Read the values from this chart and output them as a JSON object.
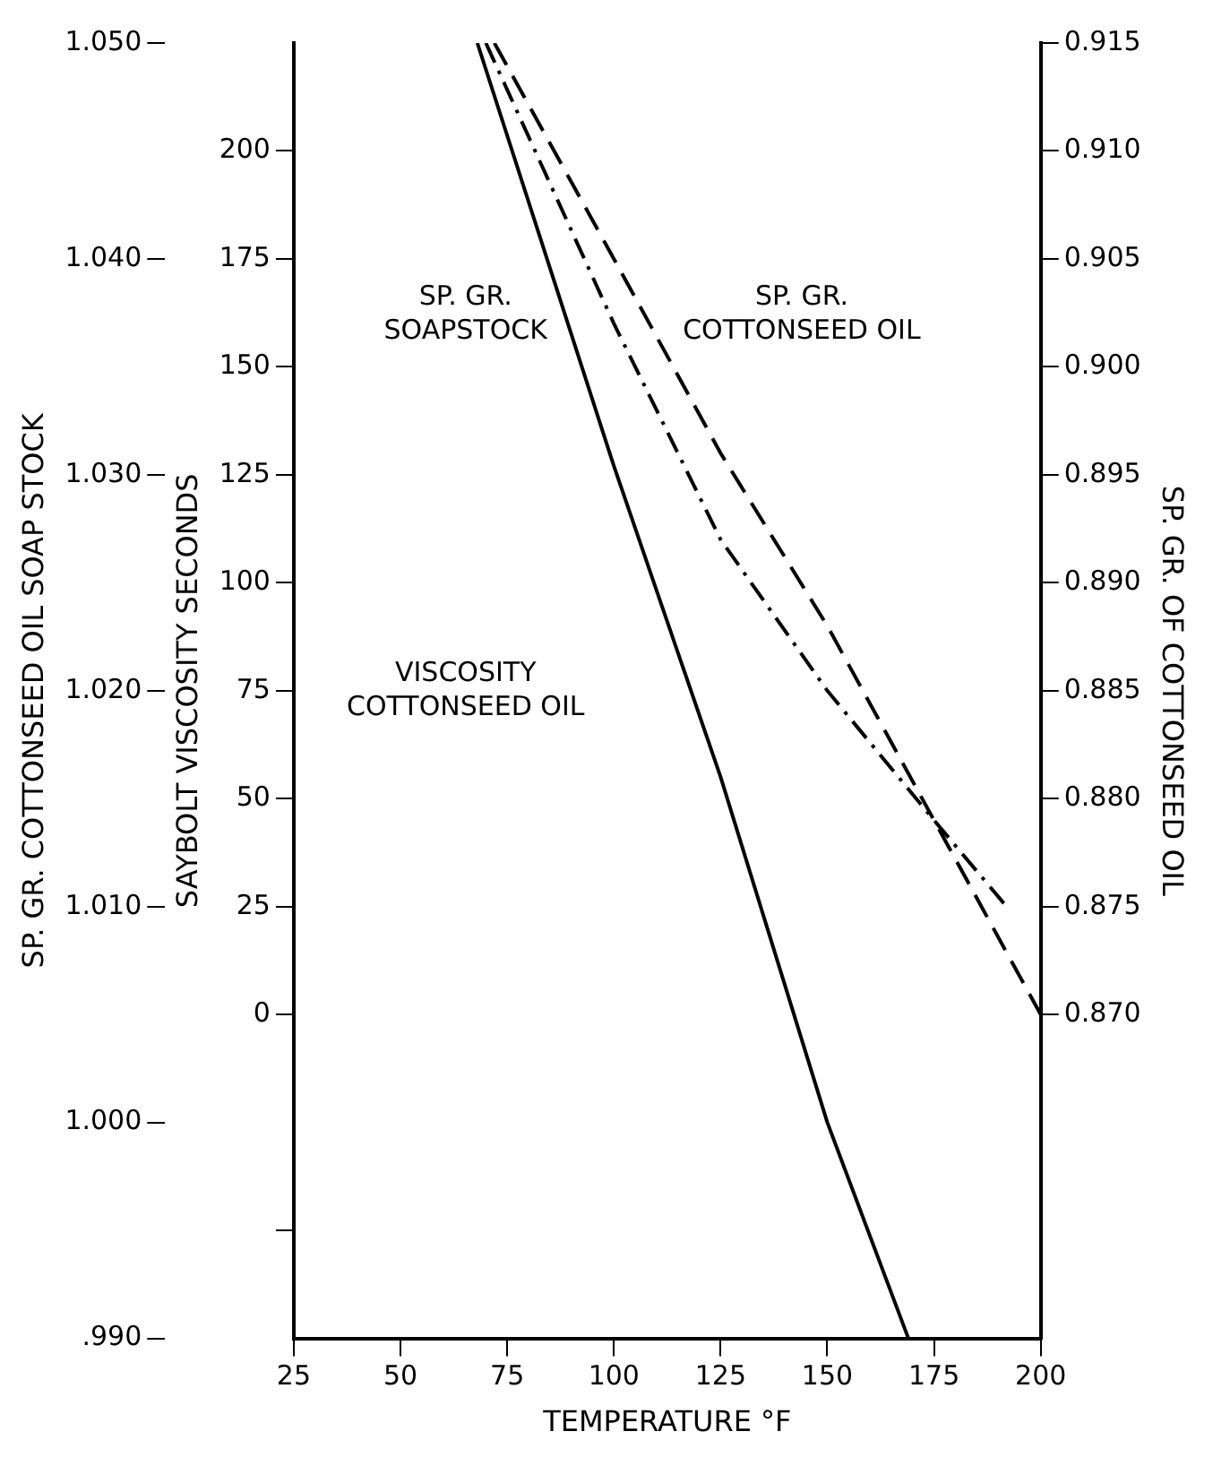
{
  "chart_data": {
    "type": "line",
    "xlabel": "TEMPERATURE °F",
    "ylabel": "SAYBOLT VISCOSITY SECONDS",
    "y2label": "SP. GR. COTTONSEED OIL SOAP STOCK",
    "y3label": "SP. GR. OF COTTONSEED OIL",
    "xlim": [
      25,
      200
    ],
    "xticks": [
      25,
      50,
      75,
      100,
      125,
      150,
      175,
      200
    ],
    "ylim": [
      -75,
      225
    ],
    "yticks": [
      {
        "value": -50,
        "label": null
      },
      0,
      25,
      50,
      75,
      100,
      125,
      150,
      175,
      200
    ],
    "y2lim": [
      0.99,
      1.05
    ],
    "y2ticks": [
      {
        "value": 0.99,
        "label": ".990"
      },
      {
        "value": 1.0,
        "label": "1.000"
      },
      {
        "value": 1.01,
        "label": "1.010"
      },
      {
        "value": 1.02,
        "label": "1.020"
      },
      {
        "value": 1.03,
        "label": "1.030"
      },
      {
        "value": 1.04,
        "label": "1.040"
      },
      {
        "value": 1.05,
        "label": "1.050"
      }
    ],
    "y3lim": [
      0.855,
      0.915
    ],
    "y3ticks": [
      {
        "value": 0.87,
        "label": "0.870"
      },
      {
        "value": 0.875,
        "label": "0.875"
      },
      {
        "value": 0.88,
        "label": "0.880"
      },
      {
        "value": 0.885,
        "label": "0.885"
      },
      {
        "value": 0.89,
        "label": "0.890"
      },
      {
        "value": 0.895,
        "label": "0.895"
      },
      {
        "value": 0.9,
        "label": "0.900"
      },
      {
        "value": 0.905,
        "label": "0.905"
      },
      {
        "value": 0.91,
        "label": "0.910"
      },
      {
        "value": 0.915,
        "label": "0.915"
      }
    ],
    "series": [
      {
        "type": "line",
        "color": "#000000",
        "line_style": "solid",
        "axis": "y",
        "x": [
          68,
          100,
          125,
          150,
          169
        ],
        "values": [
          225,
          127,
          55,
          -25,
          -75
        ]
      },
      {
        "type": "line",
        "color": "#000000",
        "line_style": "dashdot",
        "axis": "y2",
        "x": [
          70,
          100,
          125,
          150,
          175,
          192
        ],
        "values": [
          1.05,
          1.037,
          1.027,
          1.02,
          1.014,
          1.01
        ]
      },
      {
        "type": "line",
        "color": "#000000",
        "line_style": "dashed",
        "axis": "y3",
        "x": [
          72,
          100,
          125,
          150,
          175,
          200
        ],
        "values": [
          0.915,
          0.905,
          0.896,
          0.888,
          0.879,
          0.87
        ]
      }
    ],
    "annotations": [
      "SP. GR.\nSOAPSTOCK",
      "SP. GR.\nCOTTONSEED OIL",
      "VISCOSITY\nCOTTONSEED OIL"
    ],
    "legend": false,
    "grid": false,
    "marker": "none"
  }
}
